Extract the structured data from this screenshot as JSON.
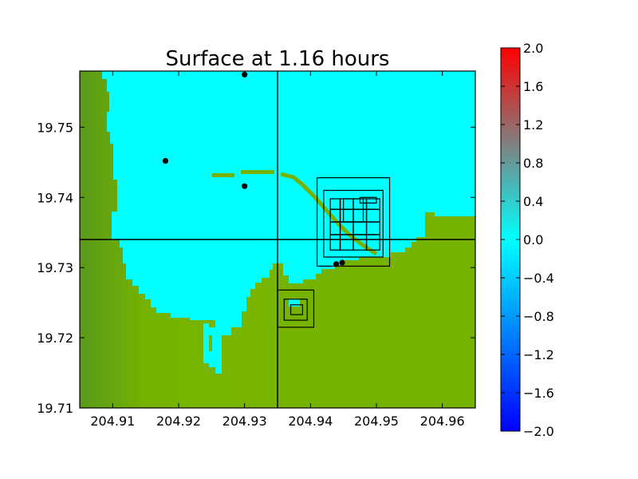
{
  "chart_data": {
    "type": "heatmap",
    "title": "Surface at 1.16 hours",
    "xlabel": "",
    "ylabel": "",
    "xlim": [
      204.905,
      204.965
    ],
    "ylim": [
      19.71,
      19.758
    ],
    "x_ticks": [
      "204.91",
      "204.92",
      "204.93",
      "204.94",
      "204.95",
      "204.96"
    ],
    "y_ticks": [
      "19.71",
      "19.72",
      "19.73",
      "19.74",
      "19.75"
    ],
    "colorbar": {
      "range": [
        -2.0,
        2.0
      ],
      "ticks": [
        "2.0",
        "1.6",
        "1.2",
        "0.8",
        "0.4",
        "0.0",
        "−0.4",
        "−0.8",
        "−1.2",
        "−1.6",
        "−2.0"
      ],
      "colors": [
        "#0000ff",
        "#00ffff",
        "#808080",
        "#ff0000"
      ]
    },
    "colors": {
      "water": "#00ffff",
      "land": "#76b300",
      "land_dark": "#4f8f1a"
    },
    "gridlines": {
      "x": [
        204.935
      ],
      "y": [
        19.734
      ]
    },
    "gauges": [
      {
        "x": 204.93,
        "y": 19.7575
      },
      {
        "x": 204.918,
        "y": 19.7452
      },
      {
        "x": 204.93,
        "y": 19.7416
      },
      {
        "x": 204.9439,
        "y": 19.7305
      },
      {
        "x": 204.9448,
        "y": 19.7307
      }
    ],
    "regions": [
      {
        "x1": 204.941,
        "x2": 204.952,
        "y1": 19.7302,
        "y2": 19.7428
      },
      {
        "x1": 204.942,
        "x2": 204.951,
        "y1": 19.7315,
        "y2": 19.741
      },
      {
        "x1": 204.943,
        "x2": 204.9505,
        "y1": 19.7325,
        "y2": 19.7398
      },
      {
        "x1": 204.945,
        "x2": 204.948,
        "y1": 19.7365,
        "y2": 19.7398
      },
      {
        "x1": 204.9475,
        "x2": 204.95,
        "y1": 19.7392,
        "y2": 19.74
      },
      {
        "x1": 204.935,
        "x2": 204.9405,
        "y1": 19.7215,
        "y2": 19.7268
      },
      {
        "x1": 204.936,
        "x2": 204.9395,
        "y1": 19.7225,
        "y2": 19.7255
      },
      {
        "x1": 204.937,
        "x2": 204.9388,
        "y1": 19.7233,
        "y2": 19.7247
      }
    ],
    "grid_lines_x": [
      204.9445,
      204.9465,
      204.9485
    ],
    "grid_lines_y": [
      19.7365,
      19.7383,
      19.7347
    ]
  }
}
